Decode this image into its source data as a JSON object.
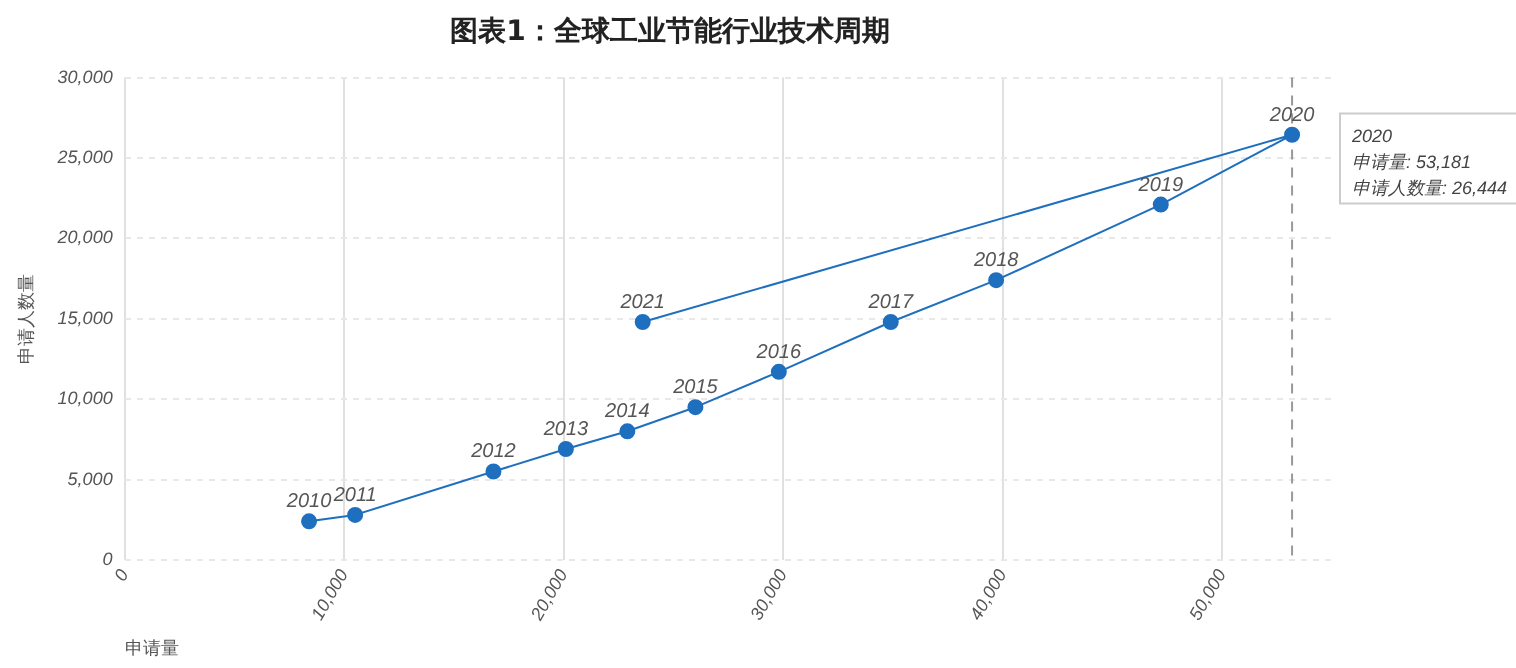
{
  "chart_data": {
    "type": "line",
    "title": "图表1：全球工业节能行业技术周期",
    "xlabel": "申请量",
    "ylabel": "申请人数量",
    "x": [
      8400,
      10500,
      16800,
      20100,
      22900,
      26000,
      29800,
      34900,
      39700,
      47200,
      53181,
      23600
    ],
    "values": [
      2400,
      2800,
      5500,
      6900,
      8000,
      9500,
      11700,
      14800,
      17400,
      22100,
      26444,
      14800
    ],
    "color": "#1f6fbf",
    "marker": "circle",
    "line_style": "solid",
    "grid": true,
    "legend": false,
    "xlim": [
      0,
      55000
    ],
    "xticks": [
      {
        "value": 0,
        "label": "0"
      },
      {
        "value": 10000,
        "label": "10,000"
      },
      {
        "value": 20000,
        "label": "20,000"
      },
      {
        "value": 30000,
        "label": "30,000"
      },
      {
        "value": 40000,
        "label": "40,000"
      },
      {
        "value": 50000,
        "label": "50,000"
      }
    ],
    "ylim": [
      0,
      30000
    ],
    "yticks": [
      {
        "value": 0,
        "label": "0"
      },
      {
        "value": 5000,
        "label": "5,000"
      },
      {
        "value": 10000,
        "label": "10,000"
      },
      {
        "value": 15000,
        "label": "15,000"
      },
      {
        "value": 20000,
        "label": "20,000"
      },
      {
        "value": 25000,
        "label": "25,000"
      },
      {
        "value": 30000,
        "label": "30,000"
      }
    ],
    "ref_lines": [
      {
        "axis": "x",
        "value": 53181,
        "color": "#999999",
        "line_style": "dashed"
      }
    ],
    "annotations": [
      {
        "text": "2010",
        "x": 8400,
        "y": 2400
      },
      {
        "text": "2011",
        "x": 10500,
        "y": 2800
      },
      {
        "text": "2012",
        "x": 16800,
        "y": 5500
      },
      {
        "text": "2013",
        "x": 20100,
        "y": 6900
      },
      {
        "text": "2014",
        "x": 22900,
        "y": 8000
      },
      {
        "text": "2015",
        "x": 26000,
        "y": 9500
      },
      {
        "text": "2016",
        "x": 29800,
        "y": 11700
      },
      {
        "text": "2017",
        "x": 34900,
        "y": 14800
      },
      {
        "text": "2018",
        "x": 39700,
        "y": 17400
      },
      {
        "text": "2019",
        "x": 47200,
        "y": 22100
      },
      {
        "text": "2020",
        "x": 53181,
        "y": 26444
      },
      {
        "text": "2021",
        "x": 23600,
        "y": 14800
      },
      "2020",
      "申请量: 53,181",
      "申请人数量: 26,444"
    ]
  }
}
